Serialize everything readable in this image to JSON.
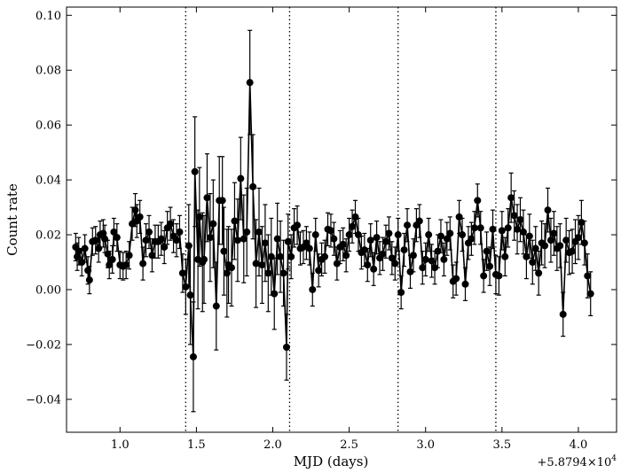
{
  "chart_data": {
    "type": "line",
    "xlabel": "MJD (days)",
    "ylabel": "Count rate",
    "offset_label": "+5.8794×10",
    "offset_exponent": "4",
    "xlim": [
      0.65,
      4.25
    ],
    "ylim": [
      -0.052,
      0.103
    ],
    "xticks": [
      1.0,
      1.5,
      2.0,
      2.5,
      3.0,
      3.5,
      4.0
    ],
    "xtick_labels": [
      "1.0",
      "1.5",
      "2.0",
      "2.5",
      "3.0",
      "3.5",
      "4.0"
    ],
    "yticks": [
      -0.04,
      -0.02,
      0.0,
      0.02,
      0.04,
      0.06,
      0.08,
      0.1
    ],
    "ytick_labels": [
      "−0.04",
      "−0.02",
      "0.00",
      "0.02",
      "0.04",
      "0.06",
      "0.08",
      "0.10"
    ],
    "vlines": [
      1.43,
      2.11,
      2.82,
      3.46
    ],
    "grid": false,
    "series_color": "#000000",
    "points": [
      [
        0.71,
        0.0155,
        0.005
      ],
      [
        0.72,
        0.012,
        0.005
      ],
      [
        0.73,
        0.014,
        0.005
      ],
      [
        0.75,
        0.01,
        0.005
      ],
      [
        0.77,
        0.015,
        0.005
      ],
      [
        0.79,
        0.007,
        0.005
      ],
      [
        0.8,
        0.0035,
        0.005
      ],
      [
        0.82,
        0.0175,
        0.005
      ],
      [
        0.84,
        0.018,
        0.005
      ],
      [
        0.86,
        0.015,
        0.005
      ],
      [
        0.87,
        0.02,
        0.005
      ],
      [
        0.89,
        0.0205,
        0.005
      ],
      [
        0.9,
        0.0185,
        0.005
      ],
      [
        0.92,
        0.013,
        0.005
      ],
      [
        0.93,
        0.009,
        0.005
      ],
      [
        0.95,
        0.011,
        0.005
      ],
      [
        0.96,
        0.021,
        0.005
      ],
      [
        0.98,
        0.019,
        0.005
      ],
      [
        1.0,
        0.009,
        0.005
      ],
      [
        1.02,
        0.0085,
        0.005
      ],
      [
        1.04,
        0.009,
        0.005
      ],
      [
        1.06,
        0.0125,
        0.005
      ],
      [
        1.08,
        0.024,
        0.006
      ],
      [
        1.1,
        0.029,
        0.006
      ],
      [
        1.11,
        0.025,
        0.006
      ],
      [
        1.13,
        0.0265,
        0.006
      ],
      [
        1.15,
        0.0095,
        0.006
      ],
      [
        1.17,
        0.018,
        0.006
      ],
      [
        1.19,
        0.021,
        0.006
      ],
      [
        1.21,
        0.0125,
        0.006
      ],
      [
        1.23,
        0.0175,
        0.006
      ],
      [
        1.25,
        0.0175,
        0.006
      ],
      [
        1.27,
        0.0185,
        0.006
      ],
      [
        1.29,
        0.0155,
        0.006
      ],
      [
        1.31,
        0.0225,
        0.006
      ],
      [
        1.33,
        0.024,
        0.006
      ],
      [
        1.35,
        0.0195,
        0.006
      ],
      [
        1.37,
        0.018,
        0.006
      ],
      [
        1.39,
        0.021,
        0.006
      ],
      [
        1.41,
        0.006,
        0.007
      ],
      [
        1.43,
        0.001,
        0.01
      ],
      [
        1.45,
        0.016,
        0.015
      ],
      [
        1.46,
        -0.002,
        0.018
      ],
      [
        1.48,
        -0.0245,
        0.02
      ],
      [
        1.49,
        0.043,
        0.02
      ],
      [
        1.51,
        0.011,
        0.018
      ],
      [
        1.52,
        0.0265,
        0.018
      ],
      [
        1.54,
        0.01,
        0.018
      ],
      [
        1.55,
        0.011,
        0.016
      ],
      [
        1.57,
        0.0335,
        0.016
      ],
      [
        1.59,
        0.019,
        0.016
      ],
      [
        1.61,
        0.024,
        0.016
      ],
      [
        1.63,
        -0.006,
        0.016
      ],
      [
        1.65,
        0.0325,
        0.016
      ],
      [
        1.67,
        0.0325,
        0.016
      ],
      [
        1.68,
        0.014,
        0.016
      ],
      [
        1.7,
        0.006,
        0.016
      ],
      [
        1.71,
        0.009,
        0.014
      ],
      [
        1.73,
        0.008,
        0.014
      ],
      [
        1.75,
        0.025,
        0.014
      ],
      [
        1.77,
        0.018,
        0.015
      ],
      [
        1.79,
        0.0405,
        0.015
      ],
      [
        1.81,
        0.0185,
        0.016
      ],
      [
        1.83,
        0.021,
        0.016
      ],
      [
        1.85,
        0.0755,
        0.019
      ],
      [
        1.87,
        0.0375,
        0.019
      ],
      [
        1.89,
        0.0095,
        0.016
      ],
      [
        1.91,
        0.021,
        0.016
      ],
      [
        1.93,
        0.009,
        0.014
      ],
      [
        1.95,
        0.017,
        0.014
      ],
      [
        1.97,
        0.006,
        0.014
      ],
      [
        1.99,
        0.012,
        0.014
      ],
      [
        2.01,
        -0.0015,
        0.013
      ],
      [
        2.03,
        0.0185,
        0.013
      ],
      [
        2.05,
        0.012,
        0.013
      ],
      [
        2.07,
        0.006,
        0.012
      ],
      [
        2.09,
        -0.021,
        0.012
      ],
      [
        2.1,
        0.0175,
        0.01
      ],
      [
        2.12,
        0.012,
        0.008
      ],
      [
        2.14,
        0.0225,
        0.007
      ],
      [
        2.16,
        0.0235,
        0.007
      ],
      [
        2.18,
        0.015,
        0.006
      ],
      [
        2.2,
        0.0155,
        0.006
      ],
      [
        2.22,
        0.017,
        0.006
      ],
      [
        2.24,
        0.015,
        0.006
      ],
      [
        2.26,
        0.0,
        0.006
      ],
      [
        2.28,
        0.02,
        0.006
      ],
      [
        2.3,
        0.007,
        0.006
      ],
      [
        2.32,
        0.011,
        0.006
      ],
      [
        2.34,
        0.012,
        0.006
      ],
      [
        2.36,
        0.022,
        0.006
      ],
      [
        2.38,
        0.0215,
        0.006
      ],
      [
        2.4,
        0.0185,
        0.006
      ],
      [
        2.42,
        0.0095,
        0.006
      ],
      [
        2.44,
        0.0155,
        0.006
      ],
      [
        2.46,
        0.0165,
        0.006
      ],
      [
        2.48,
        0.0125,
        0.006
      ],
      [
        2.5,
        0.02,
        0.006
      ],
      [
        2.52,
        0.023,
        0.006
      ],
      [
        2.54,
        0.0265,
        0.006
      ],
      [
        2.56,
        0.02,
        0.006
      ],
      [
        2.58,
        0.0135,
        0.006
      ],
      [
        2.6,
        0.0145,
        0.006
      ],
      [
        2.62,
        0.009,
        0.006
      ],
      [
        2.64,
        0.018,
        0.006
      ],
      [
        2.66,
        0.0075,
        0.006
      ],
      [
        2.68,
        0.019,
        0.006
      ],
      [
        2.7,
        0.0115,
        0.006
      ],
      [
        2.72,
        0.013,
        0.006
      ],
      [
        2.74,
        0.0175,
        0.006
      ],
      [
        2.76,
        0.0205,
        0.006
      ],
      [
        2.78,
        0.0115,
        0.006
      ],
      [
        2.8,
        0.0095,
        0.006
      ],
      [
        2.82,
        0.02,
        0.006
      ],
      [
        2.84,
        -0.001,
        0.006
      ],
      [
        2.86,
        0.0145,
        0.006
      ],
      [
        2.88,
        0.0235,
        0.006
      ],
      [
        2.9,
        0.0065,
        0.006
      ],
      [
        2.92,
        0.0125,
        0.006
      ],
      [
        2.94,
        0.0235,
        0.006
      ],
      [
        2.96,
        0.025,
        0.006
      ],
      [
        2.98,
        0.008,
        0.006
      ],
      [
        3.0,
        0.011,
        0.006
      ],
      [
        3.02,
        0.02,
        0.006
      ],
      [
        3.04,
        0.0105,
        0.006
      ],
      [
        3.06,
        0.008,
        0.006
      ],
      [
        3.08,
        0.014,
        0.006
      ],
      [
        3.1,
        0.0195,
        0.006
      ],
      [
        3.12,
        0.011,
        0.006
      ],
      [
        3.14,
        0.0185,
        0.006
      ],
      [
        3.16,
        0.0205,
        0.006
      ],
      [
        3.18,
        0.003,
        0.006
      ],
      [
        3.2,
        0.004,
        0.006
      ],
      [
        3.22,
        0.0265,
        0.006
      ],
      [
        3.24,
        0.02,
        0.006
      ],
      [
        3.26,
        0.002,
        0.006
      ],
      [
        3.28,
        0.017,
        0.006
      ],
      [
        3.3,
        0.0185,
        0.006
      ],
      [
        3.32,
        0.0225,
        0.006
      ],
      [
        3.34,
        0.0325,
        0.006
      ],
      [
        3.36,
        0.0225,
        0.006
      ],
      [
        3.38,
        0.005,
        0.006
      ],
      [
        3.4,
        0.014,
        0.007
      ],
      [
        3.42,
        0.0085,
        0.007
      ],
      [
        3.44,
        0.022,
        0.007
      ],
      [
        3.46,
        0.0055,
        0.007
      ],
      [
        3.48,
        0.005,
        0.007
      ],
      [
        3.5,
        0.0215,
        0.007
      ],
      [
        3.52,
        0.012,
        0.007
      ],
      [
        3.54,
        0.0225,
        0.007
      ],
      [
        3.56,
        0.0335,
        0.009
      ],
      [
        3.58,
        0.027,
        0.009
      ],
      [
        3.6,
        0.022,
        0.009
      ],
      [
        3.62,
        0.0255,
        0.008
      ],
      [
        3.64,
        0.021,
        0.008
      ],
      [
        3.66,
        0.012,
        0.008
      ],
      [
        3.68,
        0.0195,
        0.008
      ],
      [
        3.7,
        0.01,
        0.008
      ],
      [
        3.72,
        0.015,
        0.008
      ],
      [
        3.74,
        0.006,
        0.008
      ],
      [
        3.76,
        0.017,
        0.008
      ],
      [
        3.78,
        0.016,
        0.008
      ],
      [
        3.8,
        0.029,
        0.008
      ],
      [
        3.82,
        0.018,
        0.008
      ],
      [
        3.84,
        0.0205,
        0.008
      ],
      [
        3.86,
        0.015,
        0.008
      ],
      [
        3.88,
        0.016,
        0.008
      ],
      [
        3.9,
        -0.009,
        0.008
      ],
      [
        3.92,
        0.018,
        0.008
      ],
      [
        3.94,
        0.0135,
        0.008
      ],
      [
        3.96,
        0.014,
        0.008
      ],
      [
        3.98,
        0.0175,
        0.008
      ],
      [
        4.0,
        0.019,
        0.008
      ],
      [
        4.02,
        0.0245,
        0.008
      ],
      [
        4.04,
        0.017,
        0.008
      ],
      [
        4.06,
        0.005,
        0.008
      ],
      [
        4.08,
        -0.0015,
        0.008
      ]
    ]
  }
}
